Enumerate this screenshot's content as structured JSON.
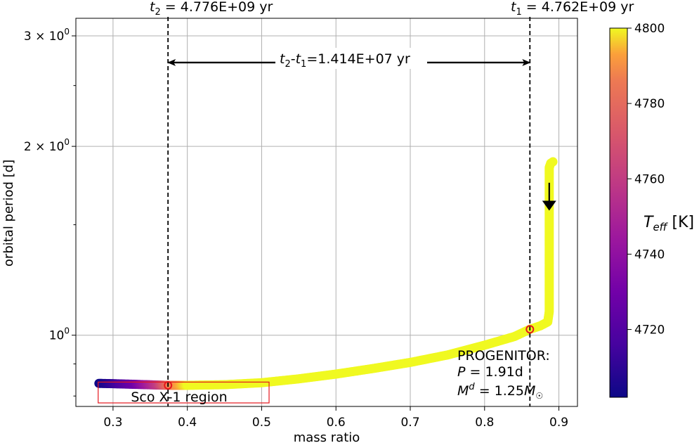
{
  "chart_data": {
    "type": "scatter",
    "title": "",
    "xlabel": "mass ratio",
    "ylabel": "orbital period [d]",
    "xlim": [
      0.25,
      0.925
    ],
    "ylim": [
      0.77,
      3.2
    ],
    "y_scale": "log",
    "grid": true,
    "x_ticks": [
      0.3,
      0.4,
      0.5,
      0.6,
      0.7,
      0.8,
      0.9
    ],
    "x_tick_labels": [
      "0.3",
      "0.4",
      "0.5",
      "0.6",
      "0.7",
      "0.8",
      "0.9"
    ],
    "y_ticks": [
      1.0,
      2.0,
      3.0
    ],
    "y_tick_labels": [
      {
        "mantissa": "",
        "exp": "0",
        "value": 1.0
      },
      {
        "mantissa": "2",
        "exp": "0",
        "value": 2.0
      },
      {
        "mantissa": "3",
        "exp": "0",
        "value": 3.0
      }
    ],
    "y_minor_ticks": [
      0.8,
      0.9,
      1.5,
      2.5
    ],
    "track": {
      "name": "evolutionary track",
      "q": [
        0.281,
        0.3,
        0.33,
        0.36,
        0.375,
        0.4,
        0.45,
        0.5,
        0.55,
        0.6,
        0.65,
        0.7,
        0.75,
        0.8,
        0.84,
        0.861,
        0.875,
        0.885,
        0.887,
        0.887,
        0.887,
        0.887,
        0.889,
        0.892
      ],
      "period": [
        0.838,
        0.837,
        0.835,
        0.833,
        0.832,
        0.832,
        0.834,
        0.84,
        0.852,
        0.867,
        0.885,
        0.905,
        0.93,
        0.964,
        0.995,
        1.022,
        1.035,
        1.05,
        1.09,
        1.3,
        1.6,
        1.85,
        1.88,
        1.89
      ],
      "teff": [
        4702,
        4712,
        4730,
        4760,
        4785,
        4800,
        4800,
        4800,
        4800,
        4800,
        4800,
        4800,
        4800,
        4800,
        4800,
        4800,
        4800,
        4800,
        4800,
        4800,
        4800,
        4800,
        4800,
        4800
      ]
    },
    "markers": [
      {
        "q": 0.374,
        "period": 0.832,
        "name": "t2"
      },
      {
        "q": 0.861,
        "period": 1.022,
        "name": "t1"
      }
    ],
    "vlines": [
      0.374,
      0.861
    ],
    "time_labels": {
      "t2": {
        "sym": "t",
        "sub": "2",
        "text": " = 4.776E+09 yr"
      },
      "t1": {
        "sym": "t",
        "sub": "1",
        "text": " = 4.762E+09 yr"
      }
    },
    "interval": {
      "y": 2.72,
      "t2": "t",
      "t2_sub": "2",
      "dash": "-",
      "t1": "t",
      "t1_sub": "1",
      "text": "=1.414E+07 yr"
    },
    "direction_arrow": {
      "q": 0.887,
      "from": 1.75,
      "to": 1.58
    },
    "sco_region": {
      "label": "Sco X-1 region",
      "q": [
        0.28,
        0.51
      ],
      "period": [
        0.78,
        0.842
      ]
    },
    "progenitor": {
      "title": "PROGENITOR:",
      "p_sym": "P",
      "p_text": " = 1.91d",
      "m_sym": "M",
      "m_sup": "d",
      "m_text": " = 1.25",
      "m_unit": "M",
      "m_unit_sub": "☉"
    },
    "colorbar": {
      "label_sym": "T",
      "label_sub": "eff",
      "label_unit": " [K]",
      "min": 4702,
      "max": 4800,
      "ticks": [
        4720,
        4740,
        4760,
        4780,
        4800
      ],
      "colormap": "plasma"
    },
    "colors": {
      "red": "#e6171e",
      "grid": "#b0b0b0",
      "axis": "#000000"
    }
  }
}
